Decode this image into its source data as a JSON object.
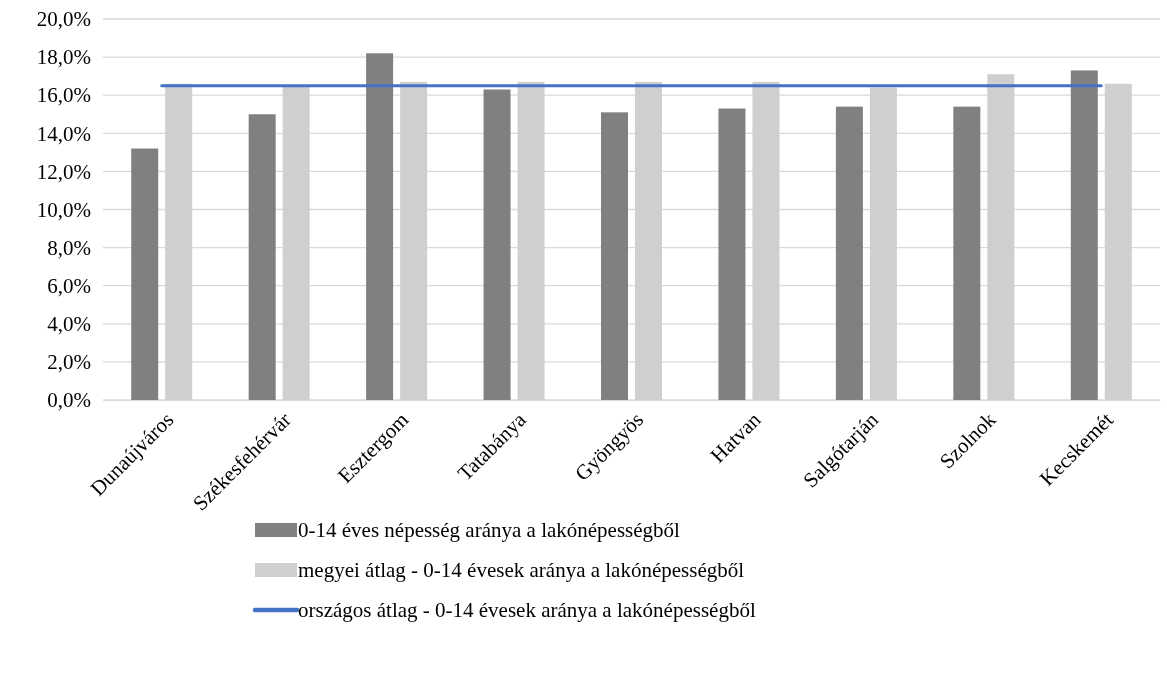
{
  "chart_data": {
    "type": "bar",
    "categories": [
      "Dunaújváros",
      "Székesfehérvár",
      "Esztergom",
      "Tatabánya",
      "Gyöngyös",
      "Hatvan",
      "Salgótarján",
      "Szolnok",
      "Kecskemét"
    ],
    "series": [
      {
        "name": "0-14 éves népesség aránya a lakónépességből",
        "color": "#808080",
        "values": [
          13.2,
          15.0,
          18.2,
          16.3,
          15.1,
          15.3,
          15.4,
          15.4,
          17.3
        ]
      },
      {
        "name": "megyei átlag - 0-14 évesek aránya a lakónépességből",
        "color": "#d0cece",
        "values": [
          16.6,
          16.5,
          16.7,
          16.7,
          16.7,
          16.7,
          16.4,
          17.1,
          16.6
        ]
      },
      {
        "name": "országos átlag - 0-14 évesek aránya a lakónépességből",
        "color": "#4472c4",
        "type": "line",
        "values": [
          16.5,
          16.5,
          16.5,
          16.5,
          16.5,
          16.5,
          16.5,
          16.5,
          16.5
        ]
      }
    ],
    "ylim": [
      0,
      20
    ],
    "yticks": [
      {
        "value": 0,
        "label": "0,0%"
      },
      {
        "value": 2,
        "label": "2,0%"
      },
      {
        "value": 4,
        "label": "4,0%"
      },
      {
        "value": 6,
        "label": "6,0%"
      },
      {
        "value": 8,
        "label": "8,0%"
      },
      {
        "value": 10,
        "label": "10,0%"
      },
      {
        "value": 12,
        "label": "12,0%"
      },
      {
        "value": 14,
        "label": "14,0%"
      },
      {
        "value": 16,
        "label": "16,0%"
      },
      {
        "value": 18,
        "label": "18,0%"
      },
      {
        "value": 20,
        "label": "20,0%"
      }
    ],
    "grid": "y",
    "legend": "bottom"
  }
}
